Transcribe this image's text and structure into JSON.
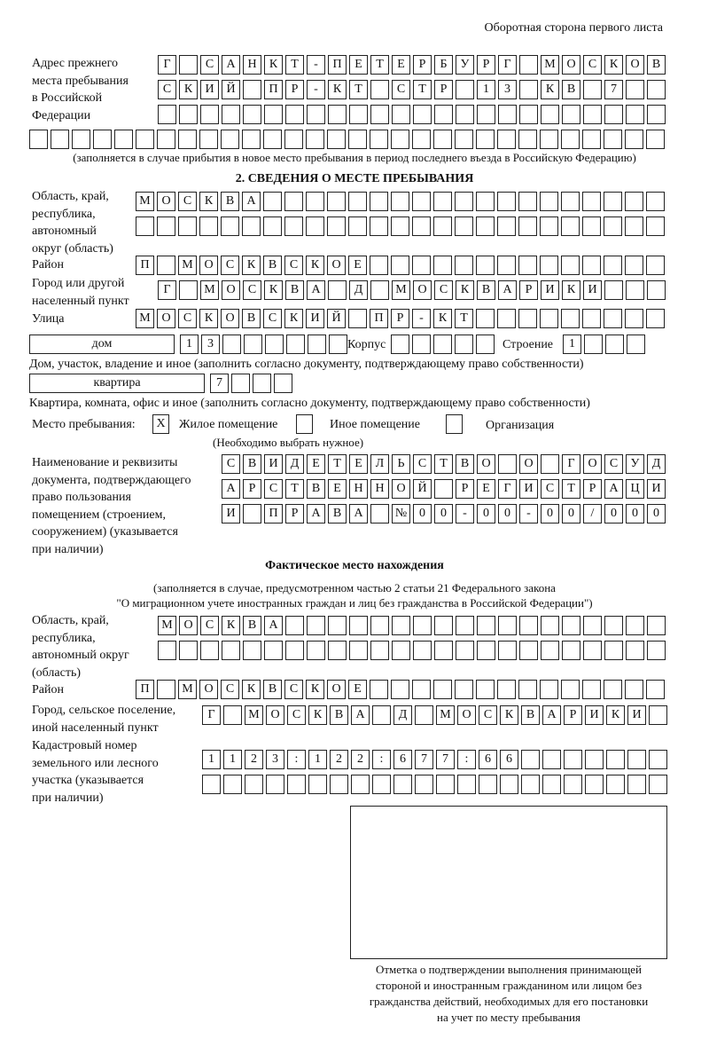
{
  "header": {
    "side_note": "Оборотная сторона первого листа"
  },
  "prev_address": {
    "label": [
      "Адрес прежнего",
      "места пребывания",
      "в Российской",
      "Федерации"
    ],
    "rows": [
      [
        "Г",
        "",
        "С",
        "А",
        "Н",
        "К",
        "Т",
        "-",
        "П",
        "Е",
        "Т",
        "Е",
        "Р",
        "Б",
        "У",
        "Р",
        "Г",
        "",
        "М",
        "О",
        "С",
        "К",
        "О",
        "В"
      ],
      [
        "С",
        "К",
        "И",
        "Й",
        "",
        "П",
        "Р",
        "-",
        "К",
        "Т",
        "",
        "С",
        "Т",
        "Р",
        "",
        "1",
        "3",
        "",
        "К",
        "В",
        "",
        "7",
        "",
        ""
      ],
      [
        "",
        "",
        "",
        "",
        "",
        "",
        "",
        "",
        "",
        "",
        "",
        "",
        "",
        "",
        "",
        "",
        "",
        "",
        "",
        "",
        "",
        "",
        "",
        ""
      ],
      [
        "",
        "",
        "",
        "",
        "",
        "",
        "",
        "",
        "",
        "",
        "",
        "",
        "",
        "",
        "",
        "",
        "",
        "",
        "",
        "",
        "",
        "",
        "",
        "",
        "",
        "",
        "",
        "",
        "",
        ""
      ]
    ],
    "note": "(заполняется в случае прибытия в новое место пребывания в период последнего въезда в Российскую Федерацию)"
  },
  "section2": {
    "title": "2. СВЕДЕНИЯ О МЕСТЕ ПРЕБЫВАНИЯ",
    "region_label": [
      "Область, край,",
      "республика,",
      "автономный",
      "округ (область)"
    ],
    "region_rows": [
      [
        "М",
        "О",
        "С",
        "К",
        "В",
        "А",
        "",
        "",
        "",
        "",
        "",
        "",
        "",
        "",
        "",
        "",
        "",
        "",
        "",
        "",
        "",
        "",
        "",
        "",
        ""
      ],
      [
        "",
        "",
        "",
        "",
        "",
        "",
        "",
        "",
        "",
        "",
        "",
        "",
        "",
        "",
        "",
        "",
        "",
        "",
        "",
        "",
        "",
        "",
        "",
        "",
        ""
      ]
    ],
    "district_label": "Район",
    "district": [
      "П",
      "",
      "М",
      "О",
      "С",
      "К",
      "В",
      "С",
      "К",
      "О",
      "Е",
      "",
      "",
      "",
      "",
      "",
      "",
      "",
      "",
      "",
      "",
      "",
      "",
      "",
      ""
    ],
    "city_label": [
      "Город или другой",
      "населенный пункт"
    ],
    "city": [
      "Г",
      "",
      "М",
      "О",
      "С",
      "К",
      "В",
      "А",
      "",
      "Д",
      "",
      "М",
      "О",
      "С",
      "К",
      "В",
      "А",
      "Р",
      "И",
      "К",
      "И",
      "",
      "",
      ""
    ],
    "street_label": "Улица",
    "street": [
      "М",
      "О",
      "С",
      "К",
      "О",
      "В",
      "С",
      "К",
      "И",
      "Й",
      "",
      "П",
      "Р",
      "-",
      "К",
      "Т",
      "",
      "",
      "",
      "",
      "",
      "",
      "",
      "",
      ""
    ],
    "house_type": "дом",
    "house": [
      "1",
      "3",
      "",
      "",
      "",
      "",
      "",
      ""
    ],
    "korpus_label": "Корпус",
    "korpus": [
      "",
      "",
      "",
      "",
      ""
    ],
    "building_label": "Строение",
    "building": [
      "1",
      "",
      "",
      ""
    ],
    "house_note": "Дом, участок, владение и иное (заполнить согласно документу, подтверждающему право собственности)",
    "flat_type": "квартира",
    "flat": [
      "7",
      "",
      "",
      ""
    ],
    "flat_note": "Квартира, комната, офис и иное (заполнить согласно документу, подтверждающему право собственности)",
    "stay_label": "Место пребывания:",
    "stay_options": [
      {
        "label": "Жилое помещение",
        "mark": "X"
      },
      {
        "label": "Иное помещение",
        "mark": ""
      },
      {
        "label": "Организация",
        "mark": ""
      }
    ],
    "stay_note": "(Необходимо выбрать нужное)",
    "doc_label": [
      "Наименование и реквизиты",
      "документа, подтверждающего",
      "право пользования",
      "помещением (строением,",
      "сооружением) (указывается",
      "при наличии)"
    ],
    "doc_rows": [
      [
        "С",
        "В",
        "И",
        "Д",
        "Е",
        "Т",
        "Е",
        "Л",
        "Ь",
        "С",
        "Т",
        "В",
        "О",
        "",
        "О",
        "",
        "Г",
        "О",
        "С",
        "У",
        "Д"
      ],
      [
        "А",
        "Р",
        "С",
        "Т",
        "В",
        "Е",
        "Н",
        "Н",
        "О",
        "Й",
        "",
        "Р",
        "Е",
        "Г",
        "И",
        "С",
        "Т",
        "Р",
        "А",
        "Ц",
        "И"
      ],
      [
        "И",
        "",
        "П",
        "Р",
        "А",
        "В",
        "А",
        "",
        "№",
        "0",
        "0",
        "-",
        "0",
        "0",
        "-",
        "0",
        "0",
        "/",
        "0",
        "0",
        "0"
      ]
    ]
  },
  "actual": {
    "title": "Фактическое место нахождения",
    "note1": "(заполняется в случае, предусмотренном частью 2 статьи 21 Федерального закона",
    "note2": "\"О миграционном учете иностранных граждан и лиц без гражданства в Российской Федерации\")",
    "region_label": [
      "Область, край,",
      "республика,",
      "автономный округ",
      "(область)"
    ],
    "region_rows": [
      [
        "М",
        "О",
        "С",
        "К",
        "В",
        "А",
        "",
        "",
        "",
        "",
        "",
        "",
        "",
        "",
        "",
        "",
        "",
        "",
        "",
        "",
        "",
        "",
        "",
        ""
      ],
      [
        "",
        "",
        "",
        "",
        "",
        "",
        "",
        "",
        "",
        "",
        "",
        "",
        "",
        "",
        "",
        "",
        "",
        "",
        "",
        "",
        "",
        "",
        "",
        ""
      ]
    ],
    "district_label": "Район",
    "district": [
      "П",
      "",
      "М",
      "О",
      "С",
      "К",
      "В",
      "С",
      "К",
      "О",
      "Е",
      "",
      "",
      "",
      "",
      "",
      "",
      "",
      "",
      "",
      "",
      "",
      "",
      "",
      ""
    ],
    "city_label": [
      "Город, сельское поселение,",
      "иной населенный пункт"
    ],
    "city": [
      "Г",
      "",
      "М",
      "О",
      "С",
      "К",
      "В",
      "А",
      "",
      "Д",
      "",
      "М",
      "О",
      "С",
      "К",
      "В",
      "А",
      "Р",
      "И",
      "К",
      "И",
      ""
    ],
    "cadastre_label": [
      "Кадастровый номер",
      "земельного или лесного",
      "участка (указывается",
      "при наличии)"
    ],
    "cadastre_rows": [
      [
        "1",
        "1",
        "2",
        "3",
        ":",
        "1",
        "2",
        "2",
        ":",
        "6",
        "7",
        "7",
        ":",
        "6",
        "6",
        "",
        "",
        "",
        "",
        "",
        "",
        ""
      ],
      [
        "",
        "",
        "",
        "",
        "",
        "",
        "",
        "",
        "",
        "",
        "",
        "",
        "",
        "",
        "",
        "",
        "",
        "",
        "",
        "",
        "",
        ""
      ]
    ]
  },
  "confirmation": {
    "caption": [
      "Отметка о подтверждении выполнения принимающей",
      "стороной и иностранным гражданином или лицом без",
      "гражданства действий, необходимых для его постановки",
      "на учет по месту пребывания"
    ]
  }
}
